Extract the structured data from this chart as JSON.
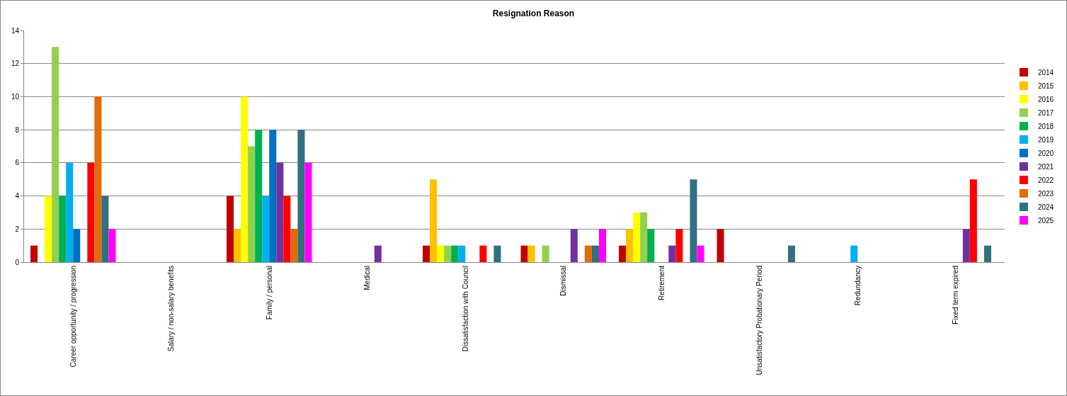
{
  "chart_data": {
    "type": "bar",
    "title": "Resignation Reason",
    "categories": [
      "Career opportunity / progression",
      "Salary / non-salary benefits",
      "Family / personal",
      "Medical",
      "Dissatisfaction with Council",
      "Dismissal",
      "Retirement",
      "Unsatisfactory Probationary Period",
      "Redundancy",
      "Fixed term expired"
    ],
    "series": [
      {
        "name": "2014",
        "color": "#c00000",
        "values": [
          1,
          0,
          4,
          0,
          1,
          1,
          1,
          2,
          0,
          0
        ]
      },
      {
        "name": "2015",
        "color": "#ffc000",
        "values": [
          0,
          0,
          2,
          0,
          5,
          1,
          2,
          0,
          0,
          0
        ]
      },
      {
        "name": "2016",
        "color": "#ffff00",
        "values": [
          4,
          0,
          10,
          0,
          1,
          0,
          3,
          0,
          0,
          0
        ]
      },
      {
        "name": "2017",
        "color": "#92d050",
        "values": [
          13,
          0,
          7,
          0,
          1,
          1,
          3,
          0,
          0,
          0
        ]
      },
      {
        "name": "2018",
        "color": "#00b050",
        "values": [
          4,
          0,
          8,
          0,
          1,
          0,
          2,
          0,
          0,
          0
        ]
      },
      {
        "name": "2019",
        "color": "#00b0f0",
        "values": [
          6,
          0,
          4,
          0,
          1,
          0,
          0,
          0,
          1,
          0
        ]
      },
      {
        "name": "2020",
        "color": "#0070c0",
        "values": [
          2,
          0,
          8,
          0,
          0,
          0,
          0,
          0,
          0,
          0
        ]
      },
      {
        "name": "2021",
        "color": "#7030a0",
        "values": [
          0,
          0,
          6,
          1,
          0,
          2,
          1,
          0,
          0,
          2
        ]
      },
      {
        "name": "2022",
        "color": "#ff0000",
        "values": [
          6,
          0,
          4,
          0,
          1,
          0,
          2,
          0,
          0,
          5
        ]
      },
      {
        "name": "2023",
        "color": "#e46c0a",
        "values": [
          10,
          0,
          2,
          0,
          0,
          1,
          0,
          0,
          0,
          0
        ]
      },
      {
        "name": "2024",
        "color": "#31707f",
        "values": [
          4,
          0,
          8,
          0,
          1,
          1,
          5,
          1,
          0,
          1
        ]
      },
      {
        "name": "2025",
        "color": "#ff00ff",
        "values": [
          2,
          0,
          6,
          0,
          0,
          2,
          1,
          0,
          0,
          0
        ]
      }
    ],
    "ylim": [
      0,
      14
    ],
    "yticks": [
      0,
      2,
      4,
      6,
      8,
      10,
      12,
      14
    ],
    "grid": "y",
    "legend": "right"
  }
}
